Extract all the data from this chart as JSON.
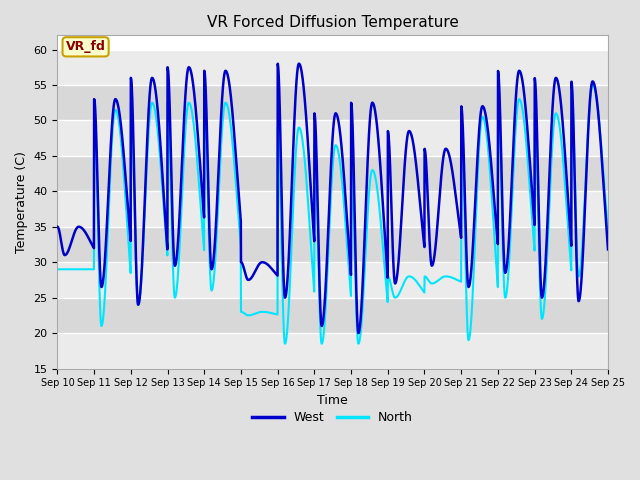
{
  "title": "VR Forced Diffusion Temperature",
  "xlabel": "Time",
  "ylabel": "Temperature (C)",
  "ylim": [
    15,
    62
  ],
  "xlim": [
    0,
    15
  ],
  "x_tick_labels": [
    "Sep 10",
    "Sep 11",
    "Sep 12",
    "Sep 13",
    "Sep 14",
    "Sep 15",
    "Sep 16",
    "Sep 17",
    "Sep 18",
    "Sep 19",
    "Sep 20",
    "Sep 21",
    "Sep 22",
    "Sep 23",
    "Sep 24",
    "Sep 25"
  ],
  "y_ticks": [
    15,
    20,
    25,
    30,
    35,
    40,
    45,
    50,
    55,
    60
  ],
  "west_color": "#0000cc",
  "north_color": "#00e5ff",
  "background_color": "#e0e0e0",
  "plot_bg_color": "#ffffff",
  "band_color_light": "#f0f0f0",
  "band_color_dark": "#dcdcdc",
  "annotation_text": "VR_fd",
  "annotation_bg": "#ffffcc",
  "annotation_border": "#c8a000",
  "annotation_text_color": "#8b0000",
  "legend_west": "West",
  "legend_north": "North",
  "west_day_data": [
    {
      "peak": 35.0,
      "trough": 31.0,
      "peak_phase": 0.58,
      "trough_phase": 0.25
    },
    {
      "peak": 53.0,
      "trough": 26.5,
      "peak_phase": 0.58,
      "trough_phase": 0.25
    },
    {
      "peak": 56.0,
      "trough": 24.0,
      "peak_phase": 0.58,
      "trough_phase": 0.25
    },
    {
      "peak": 57.5,
      "trough": 29.5,
      "peak_phase": 0.58,
      "trough_phase": 0.25
    },
    {
      "peak": 57.0,
      "trough": 29.0,
      "peak_phase": 0.58,
      "trough_phase": 0.25
    },
    {
      "peak": 30.0,
      "trough": 27.5,
      "peak_phase": 0.58,
      "trough_phase": 0.25
    },
    {
      "peak": 58.0,
      "trough": 25.0,
      "peak_phase": 0.58,
      "trough_phase": 0.25
    },
    {
      "peak": 51.0,
      "trough": 21.0,
      "peak_phase": 0.58,
      "trough_phase": 0.25
    },
    {
      "peak": 52.5,
      "trough": 20.0,
      "peak_phase": 0.58,
      "trough_phase": 0.25
    },
    {
      "peak": 48.5,
      "trough": 27.0,
      "peak_phase": 0.58,
      "trough_phase": 0.25
    },
    {
      "peak": 46.0,
      "trough": 29.5,
      "peak_phase": 0.58,
      "trough_phase": 0.25
    },
    {
      "peak": 52.0,
      "trough": 26.5,
      "peak_phase": 0.58,
      "trough_phase": 0.25
    },
    {
      "peak": 57.0,
      "trough": 28.5,
      "peak_phase": 0.58,
      "trough_phase": 0.25
    },
    {
      "peak": 56.0,
      "trough": 25.0,
      "peak_phase": 0.58,
      "trough_phase": 0.25
    },
    {
      "peak": 55.5,
      "trough": 24.5,
      "peak_phase": 0.58,
      "trough_phase": 0.25
    }
  ],
  "north_day_data": [
    {
      "peak": 29.0,
      "trough": 29.0,
      "peak_phase": 0.58,
      "trough_phase": 0.25
    },
    {
      "peak": 51.5,
      "trough": 21.0,
      "peak_phase": 0.58,
      "trough_phase": 0.25
    },
    {
      "peak": 52.5,
      "trough": 24.0,
      "peak_phase": 0.58,
      "trough_phase": 0.25
    },
    {
      "peak": 52.5,
      "trough": 25.0,
      "peak_phase": 0.58,
      "trough_phase": 0.25
    },
    {
      "peak": 52.5,
      "trough": 26.0,
      "peak_phase": 0.58,
      "trough_phase": 0.25
    },
    {
      "peak": 23.0,
      "trough": 22.5,
      "peak_phase": 0.58,
      "trough_phase": 0.25
    },
    {
      "peak": 49.0,
      "trough": 18.5,
      "peak_phase": 0.58,
      "trough_phase": 0.25
    },
    {
      "peak": 46.5,
      "trough": 18.5,
      "peak_phase": 0.58,
      "trough_phase": 0.25
    },
    {
      "peak": 43.0,
      "trough": 18.5,
      "peak_phase": 0.58,
      "trough_phase": 0.25
    },
    {
      "peak": 28.0,
      "trough": 25.0,
      "peak_phase": 0.58,
      "trough_phase": 0.25
    },
    {
      "peak": 28.0,
      "trough": 27.0,
      "peak_phase": 0.58,
      "trough_phase": 0.25
    },
    {
      "peak": 50.5,
      "trough": 19.0,
      "peak_phase": 0.58,
      "trough_phase": 0.25
    },
    {
      "peak": 53.0,
      "trough": 25.0,
      "peak_phase": 0.58,
      "trough_phase": 0.25
    },
    {
      "peak": 51.0,
      "trough": 22.0,
      "peak_phase": 0.58,
      "trough_phase": 0.25
    },
    {
      "peak": 55.0,
      "trough": 28.0,
      "peak_phase": 0.58,
      "trough_phase": 0.25
    }
  ]
}
